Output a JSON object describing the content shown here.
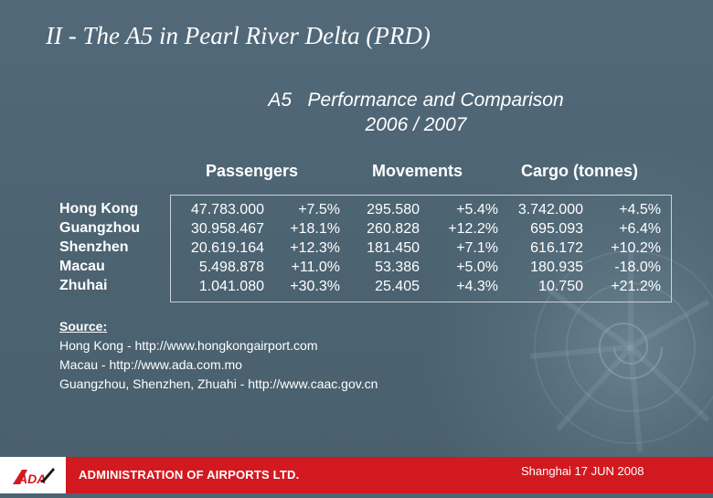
{
  "slide_title": "II  - The A5 in Pearl River Delta (PRD)",
  "subtitle": {
    "line1": "A5   Performance and Comparison",
    "line2": "2006 / 2007"
  },
  "headers": {
    "passengers": "Passengers",
    "movements": "Movements",
    "cargo": "Cargo (tonnes)"
  },
  "rows": [
    {
      "name": "Hong Kong",
      "pax": "47.783.000",
      "pax_chg": "+7.5%",
      "mov": "295.580",
      "mov_chg": "+5.4%",
      "cargo": "3.742.000",
      "cargo_chg": "+4.5%"
    },
    {
      "name": "Guangzhou",
      "pax": "30.958.467",
      "pax_chg": "+18.1%",
      "mov": "260.828",
      "mov_chg": "+12.2%",
      "cargo": "695.093",
      "cargo_chg": "+6.4%"
    },
    {
      "name": "Shenzhen",
      "pax": "20.619.164",
      "pax_chg": "+12.3%",
      "mov": "181.450",
      "mov_chg": "+7.1%",
      "cargo": "616.172",
      "cargo_chg": "+10.2%"
    },
    {
      "name": "Macau",
      "pax": "5.498.878",
      "pax_chg": "+11.0%",
      "mov": "53.386",
      "mov_chg": "+5.0%",
      "cargo": "180.935",
      "cargo_chg": "-18.0%"
    },
    {
      "name": "Zhuhai",
      "pax": "1.041.080",
      "pax_chg": "+30.3%",
      "mov": "25.405",
      "mov_chg": "+4.3%",
      "cargo": "10.750",
      "cargo_chg": "+21.2%"
    }
  ],
  "source": {
    "heading": "Source:",
    "lines": [
      "Hong Kong - http://www.hongkongairport.com",
      "Macau - http://www.ada.com.mo",
      "Guangzhou, Shenzhen, Zhuahi - http://www.caac.gov.cn"
    ]
  },
  "footer": {
    "logo_text": "ADA",
    "company": "ADMINISTRATION OF AIRPORTS LTD.",
    "event": "Shanghai 17 JUN 2008",
    "accent_color": "#d31920"
  }
}
